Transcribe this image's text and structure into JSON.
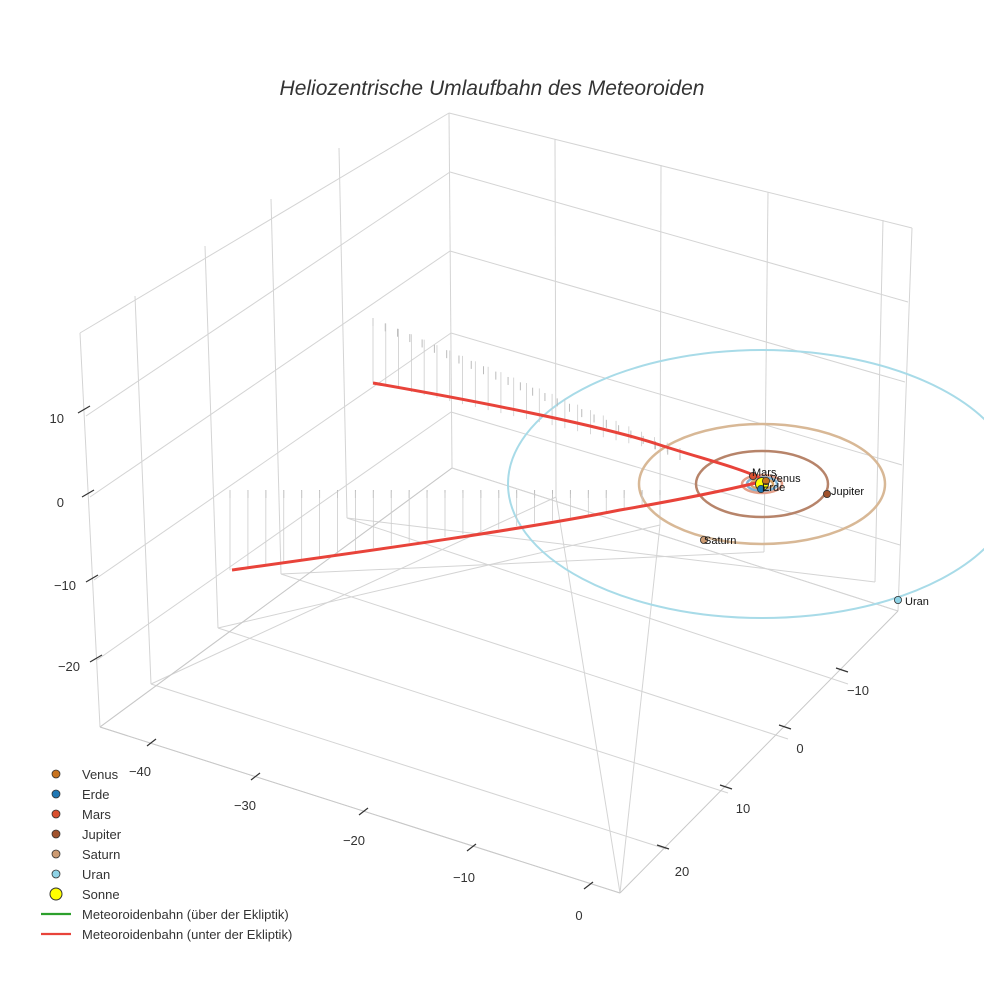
{
  "chart_data": {
    "type": "scatter3d",
    "title": "Heliozentrische Umlaufbahn des Meteoroiden",
    "z_ticks": [
      "10",
      "0",
      "−10",
      "−20"
    ],
    "x_ticks": [
      "−40",
      "−30",
      "−20",
      "−10",
      "0"
    ],
    "y_ticks": [
      "−10",
      "0",
      "10",
      "20"
    ],
    "planets": [
      {
        "name": "Venus",
        "color": "#c8731e",
        "orbit_radius_au": 0.72
      },
      {
        "name": "Erde",
        "color": "#1f77b4",
        "orbit_radius_au": 1.0
      },
      {
        "name": "Mars",
        "color": "#d9502f",
        "orbit_radius_au": 1.52
      },
      {
        "name": "Jupiter",
        "color": "#a0522d",
        "orbit_radius_au": 5.2
      },
      {
        "name": "Saturn",
        "color": "#cd9b72",
        "orbit_radius_au": 9.54
      },
      {
        "name": "Uran",
        "color": "#8fd3e6",
        "orbit_radius_au": 19.2
      }
    ],
    "orbit_colors": {
      "Venus": "#d6a46a",
      "Erde": "#7fb3d5",
      "Mars": "#e3a08a",
      "Jupiter": "#b7846a",
      "Saturn": "#d8b896",
      "Uran": "#a8dbe8"
    },
    "sun": {
      "name": "Sonne",
      "color": "#ffff00"
    },
    "meteoroid_track": {
      "color": "#e8433a",
      "points": [
        {
          "x": -40,
          "y": -17,
          "z": 10
        },
        {
          "x": -30,
          "y": -14,
          "z": 8.5
        },
        {
          "x": -20,
          "y": -10.5,
          "z": 6.5
        },
        {
          "x": -10,
          "y": -6,
          "z": 3.5
        },
        {
          "x": 0,
          "y": 0,
          "z": 0
        },
        {
          "x": -10,
          "y": 7,
          "z": -1.5
        },
        {
          "x": -20,
          "y": 13,
          "z": -2.5
        },
        {
          "x": -30,
          "y": 18,
          "z": -3.2
        },
        {
          "x": -40,
          "y": 22,
          "z": -3.8
        },
        {
          "x": -50,
          "y": 25,
          "z": -4.2
        }
      ]
    },
    "legend": [
      {
        "label": "Venus",
        "kind": "dot",
        "color": "#c8731e"
      },
      {
        "label": "Erde",
        "kind": "dot",
        "color": "#1f77b4"
      },
      {
        "label": "Mars",
        "kind": "dot",
        "color": "#d9502f"
      },
      {
        "label": "Jupiter",
        "kind": "dot",
        "color": "#a0522d"
      },
      {
        "label": "Saturn",
        "kind": "dot",
        "color": "#cd9b72"
      },
      {
        "label": "Uran",
        "kind": "dot",
        "color": "#8fd3e6"
      },
      {
        "label": "Sonne",
        "kind": "sun",
        "color": "#ffff00"
      },
      {
        "label": "Meteoroidenbahn (über der Ekliptik)",
        "kind": "line",
        "color": "#2ca02c"
      },
      {
        "label": "Meteoroidenbahn (unter der Ekliptik)",
        "kind": "line",
        "color": "#e8433a"
      }
    ]
  }
}
